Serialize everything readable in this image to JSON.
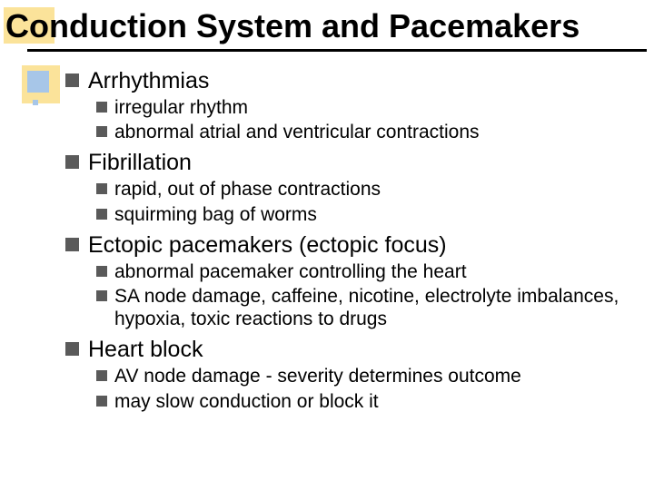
{
  "title": "Conduction System and Pacemakers",
  "colors": {
    "title_shadow": "#fbe39a",
    "accent_blue": "#a7c6e8",
    "bullet": "#5a5a5a",
    "rule": "#000000",
    "text": "#000000",
    "background": "#ffffff"
  },
  "typography": {
    "title_fontsize": 36,
    "lvl1_fontsize": 25,
    "lvl2_fontsize": 21,
    "font_family": "Comic Sans MS"
  },
  "sections": [
    {
      "heading": "Arrhythmias",
      "items": [
        "irregular rhythm",
        "abnormal atrial and ventricular contractions"
      ]
    },
    {
      "heading": "Fibrillation",
      "items": [
        "rapid, out of phase contractions",
        "squirming bag of worms"
      ]
    },
    {
      "heading": "Ectopic pacemakers (ectopic focus)",
      "items": [
        "abnormal pacemaker controlling the heart",
        "SA node damage, caffeine, nicotine, electrolyte imbalances, hypoxia, toxic reactions to drugs"
      ]
    },
    {
      "heading": "Heart block",
      "items": [
        "AV node damage - severity determines outcome",
        "may slow conduction or block it"
      ]
    }
  ]
}
